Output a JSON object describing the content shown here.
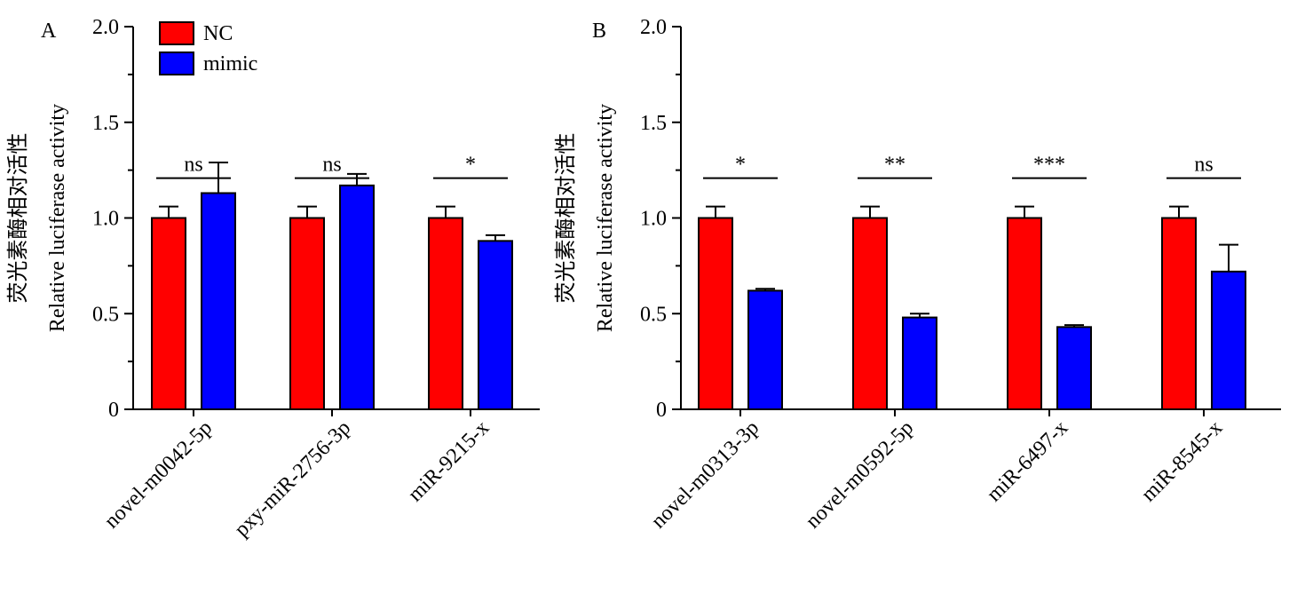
{
  "colors": {
    "nc": "#ff0000",
    "mimic": "#0000ff",
    "axis": "#000000"
  },
  "legend": {
    "items": [
      {
        "label": "NC",
        "color": "#ff0000"
      },
      {
        "label": "mimic",
        "color": "#0000ff"
      }
    ]
  },
  "chart_data": [
    {
      "panel": "A",
      "type": "bar",
      "ylabel_cn": "荧光素酶相对活性",
      "ylabel": "Relative luciferase activity",
      "ylim": [
        0,
        2.0
      ],
      "yticks": [
        "0",
        "0.5",
        "1.0",
        "1.5",
        "2.0"
      ],
      "categories": [
        "novel-m0042-5p",
        "pxy-miR-2756-3p",
        "miR-9215-x"
      ],
      "series": [
        {
          "name": "NC",
          "values": [
            1.0,
            1.0,
            1.0
          ],
          "errors": [
            0.06,
            0.06,
            0.06
          ]
        },
        {
          "name": "mimic",
          "values": [
            1.13,
            1.17,
            0.88
          ],
          "errors": [
            0.16,
            0.06,
            0.03
          ]
        }
      ],
      "significance": [
        "ns",
        "ns",
        "*"
      ]
    },
    {
      "panel": "B",
      "type": "bar",
      "ylabel_cn": "荧光素酶相对活性",
      "ylabel": "Relative luciferase activity",
      "ylim": [
        0,
        2.0
      ],
      "yticks": [
        "0",
        "0.5",
        "1.0",
        "1.5",
        "2.0"
      ],
      "categories": [
        "novel-m0313-3p",
        "novel-m0592-5p",
        "miR-6497-x",
        "miR-8545-x"
      ],
      "series": [
        {
          "name": "NC",
          "values": [
            1.0,
            1.0,
            1.0,
            1.0
          ],
          "errors": [
            0.06,
            0.06,
            0.06,
            0.06
          ]
        },
        {
          "name": "mimic",
          "values": [
            0.62,
            0.48,
            0.43,
            0.72
          ],
          "errors": [
            0.01,
            0.02,
            0.01,
            0.14
          ]
        }
      ],
      "significance": [
        "*",
        "**",
        "***",
        "ns"
      ]
    }
  ]
}
